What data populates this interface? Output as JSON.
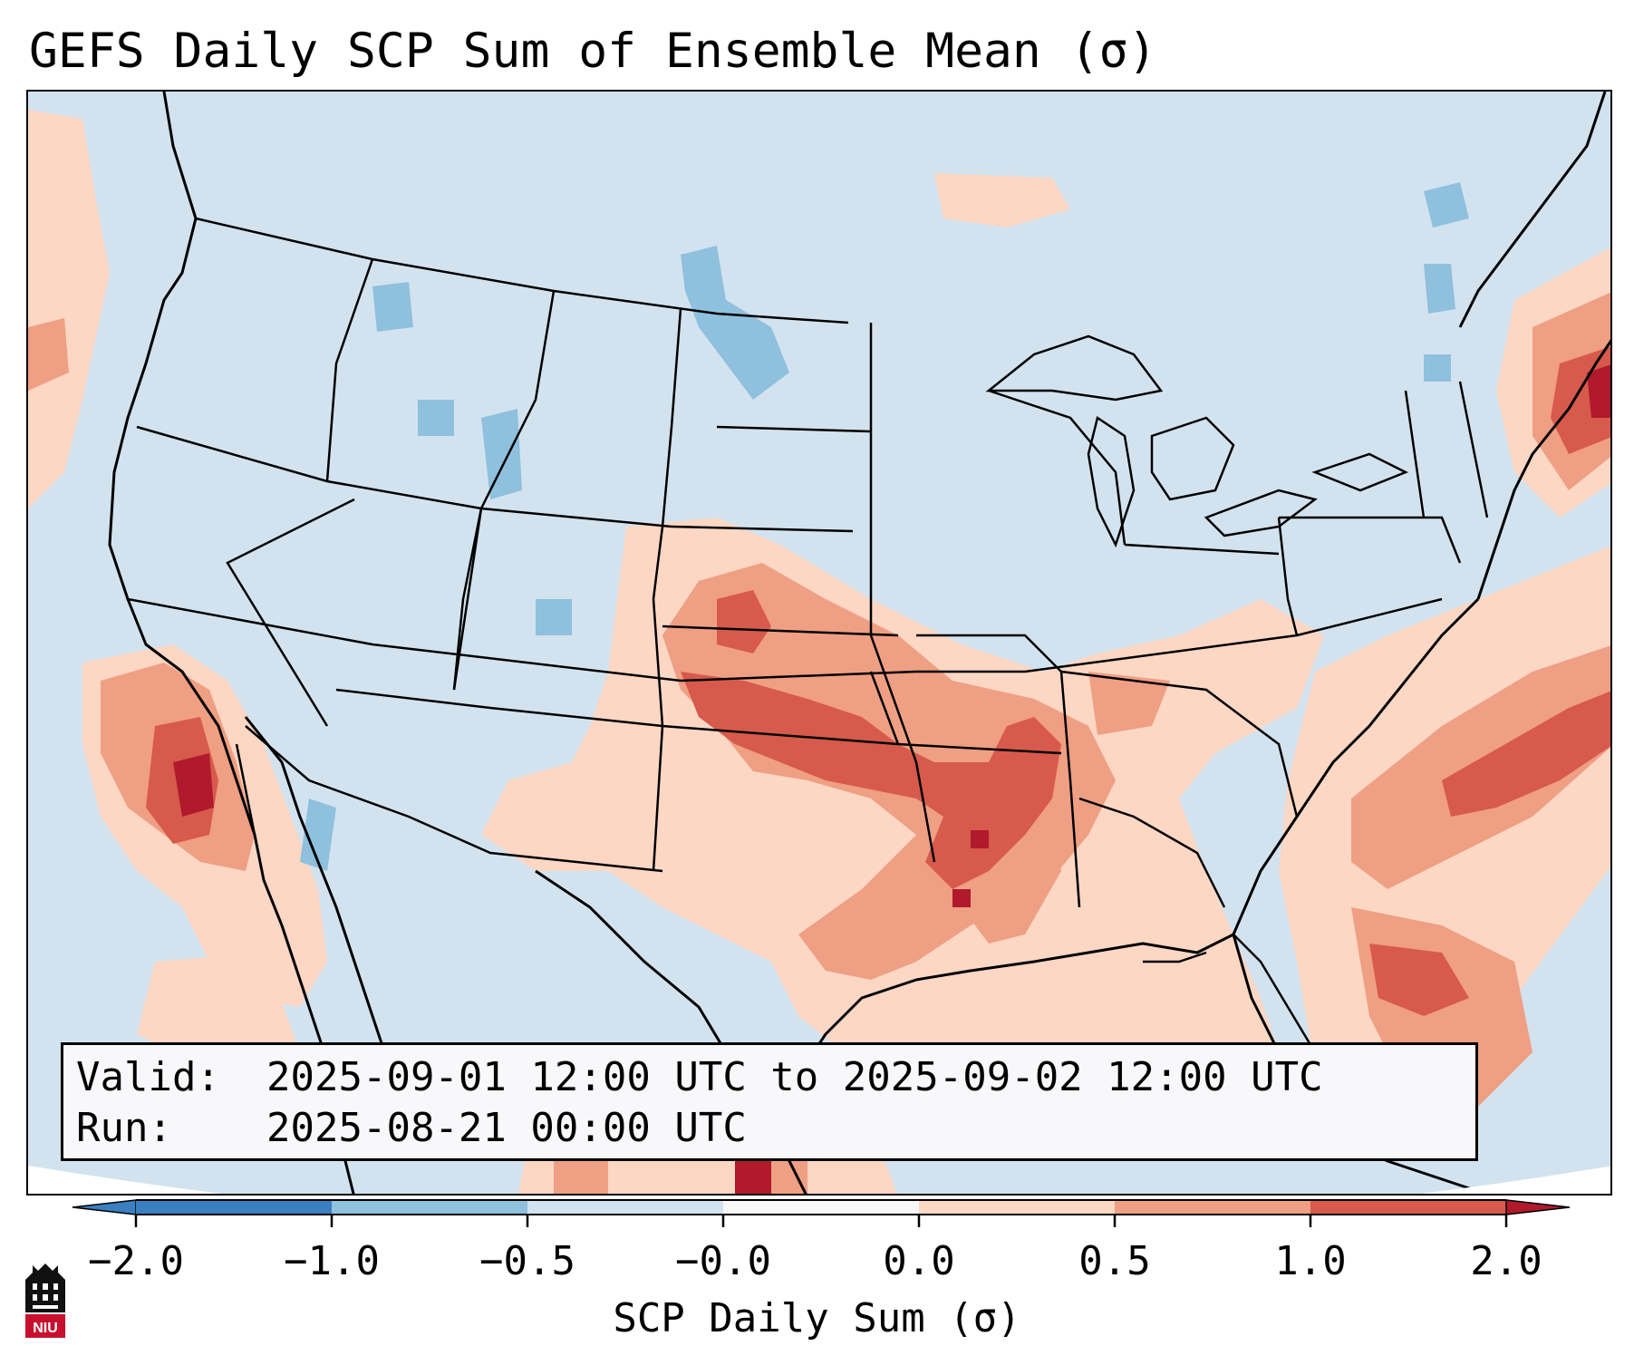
{
  "title": "GEFS Daily SCP Sum of Ensemble Mean (σ)",
  "info": {
    "valid_label": "Valid:",
    "valid_value": "2025-09-01 12:00 UTC to 2025-09-02 12:00 UTC",
    "run_label": "Run:",
    "run_value": "2025-08-21 00:00 UTC"
  },
  "colorbar": {
    "title": "SCP Daily Sum (σ)",
    "tick_labels": [
      "−2.0",
      "−1.0",
      "−0.5",
      "−0.0",
      "0.0",
      "0.5",
      "1.0",
      "2.0"
    ],
    "colors": [
      "#3a7fbf",
      "#8fc0de",
      "#d2e3ef",
      "#f8f8f8",
      "#fbd7c4",
      "#ef9f83",
      "#d75a4c",
      "#b01a2c"
    ],
    "extend": "both"
  },
  "legend": {
    "background_color": "#d2e3ef",
    "categories": [
      "−1.0 to −0.5",
      "−0.5 to 0.0",
      "0.0 to 0.5",
      "0.5 to 1.0",
      "1.0 to 2.0",
      "> 2.0"
    ]
  },
  "logo": {
    "icon": "niu-building-icon",
    "text": "NIU"
  }
}
